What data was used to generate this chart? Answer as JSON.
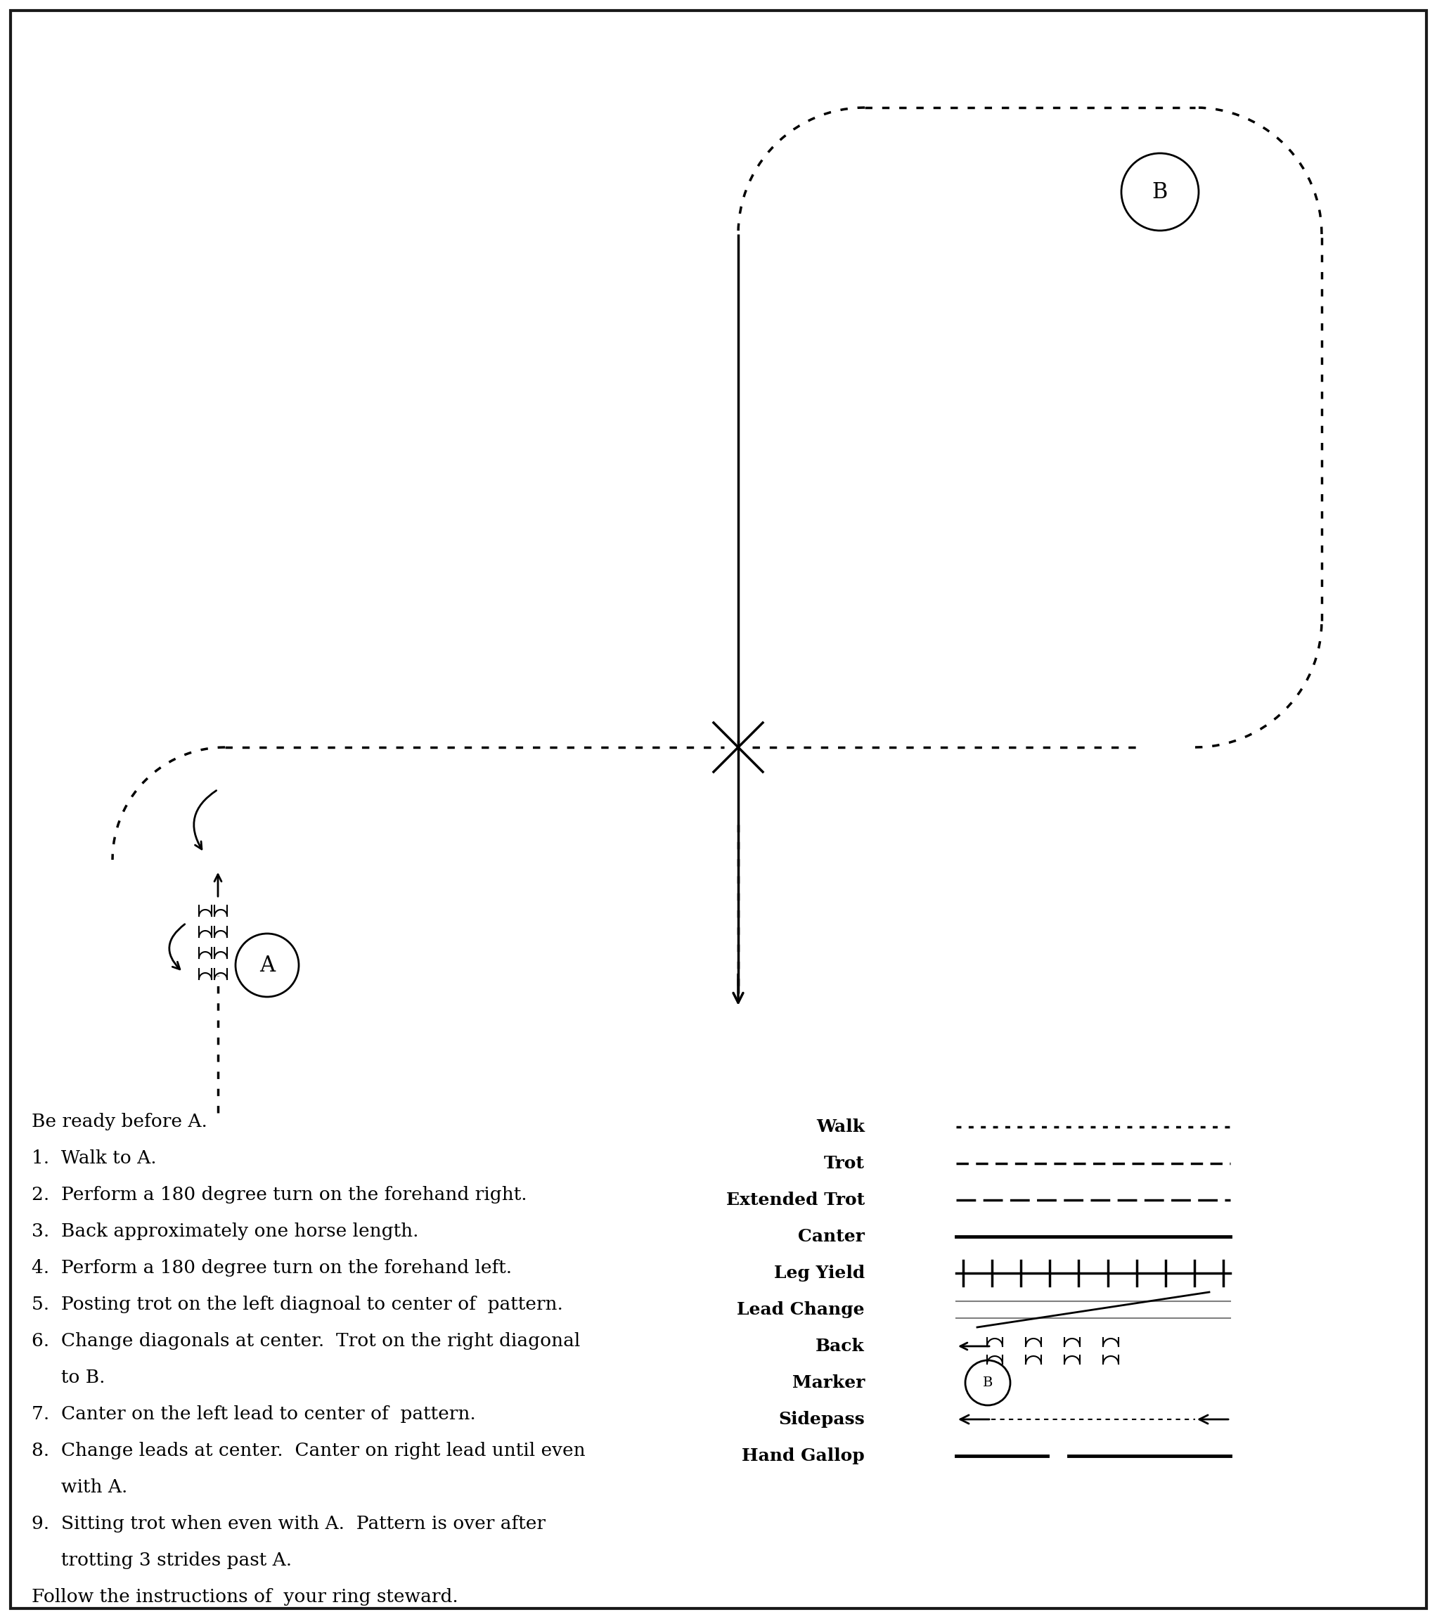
{
  "bg_color": "#ffffff",
  "border_color": "#1a1a1a",
  "title_instructions": [
    "Be ready before A.",
    "1.  Walk to A.",
    "2.  Perform a 180 degree turn on the forehand right.",
    "3.  Back approximately one horse length.",
    "4.  Perform a 180 degree turn on the forehand left.",
    "5.  Posting trot on the left diagnoal to center of  pattern.",
    "6.  Change diagonals at center.  Trot on the right diagonal",
    "     to B.",
    "7.  Canter on the left lead to center of  pattern.",
    "8.  Change leads at center.  Canter on right lead until even",
    "     with A.",
    "9.  Sitting trot when even with A.  Pattern is over after",
    "     trotting 3 strides past A.",
    "Follow the instructions of  your ring steward."
  ],
  "legend_items": [
    {
      "label": "Walk",
      "style": "small_dash"
    },
    {
      "label": "Trot",
      "style": "medium_dash"
    },
    {
      "label": "Extended Trot",
      "style": "long_dash"
    },
    {
      "label": "Canter",
      "style": "solid"
    },
    {
      "label": "Leg Yield",
      "style": "hatch"
    },
    {
      "label": "Lead Change",
      "style": "cross_lines"
    },
    {
      "label": "Back",
      "style": "back_arrow"
    },
    {
      "label": "Marker",
      "style": "circle_B"
    },
    {
      "label": "Sidepass",
      "style": "sidepass"
    },
    {
      "label": "Hand Gallop",
      "style": "hand_gallop"
    }
  ]
}
